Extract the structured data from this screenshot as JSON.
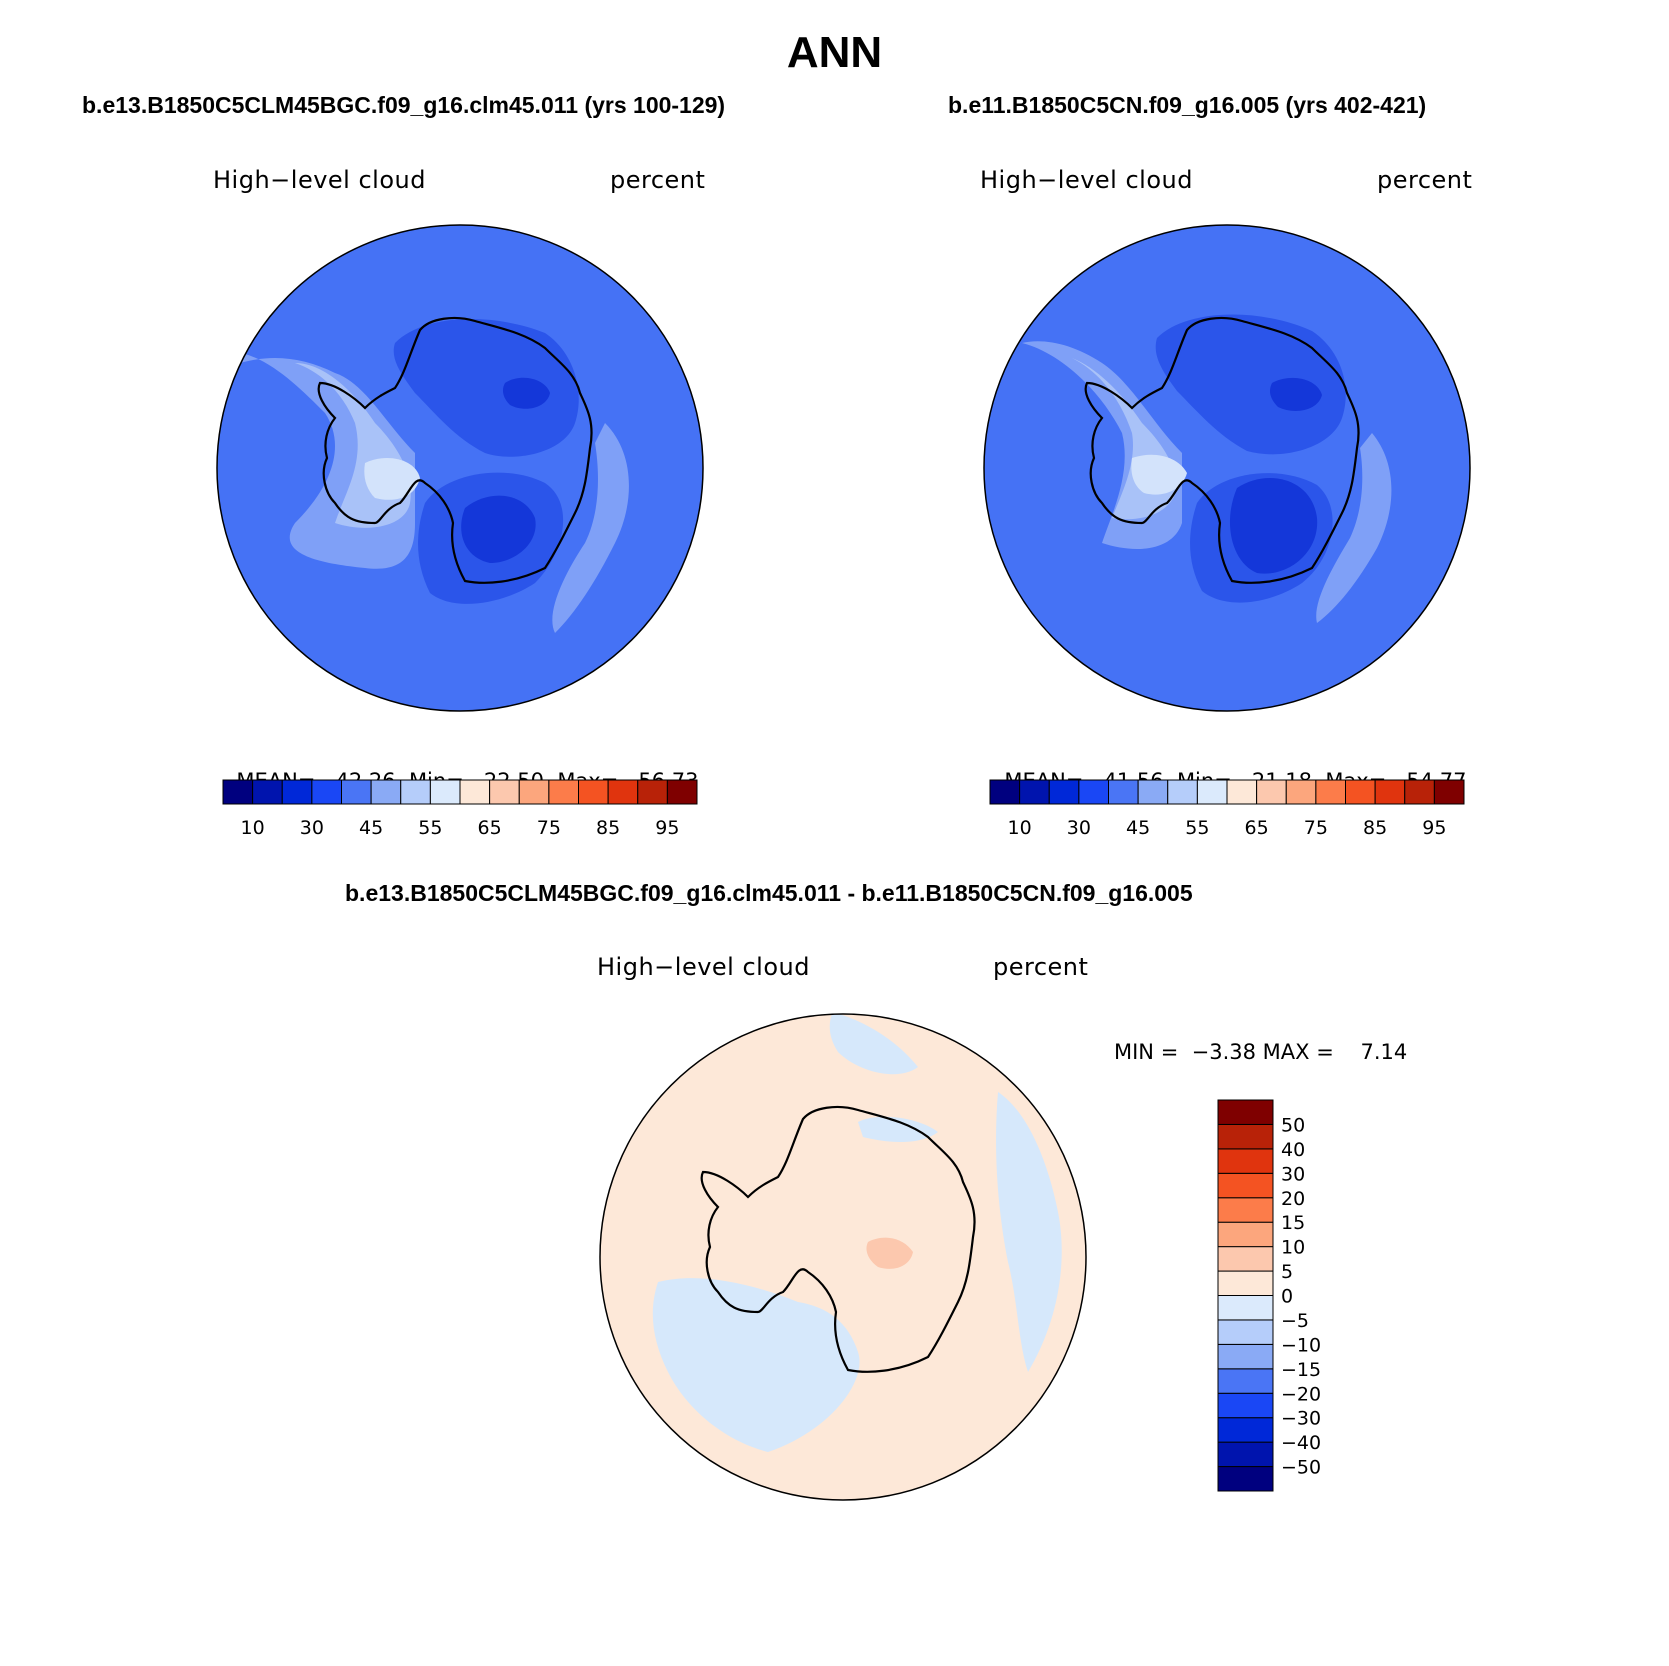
{
  "figure": {
    "title": "ANN",
    "variable_label": "High−level cloud",
    "units_label": "percent"
  },
  "panels": [
    {
      "case": "b.e13.B1850C5CLM45BGC.f09_g16.clm45.011 (yrs 100-129)",
      "variable": "High−level cloud",
      "units": "percent",
      "stats": {
        "mean_label": "MEAN=",
        "mean": "42.26",
        "min_label": "Min=",
        "min": "22.50",
        "max_label": "Max=",
        "max": "56.73"
      }
    },
    {
      "case": "b.e11.B1850C5CN.f09_g16.005 (yrs 402-421)",
      "variable": "High−level cloud",
      "units": "percent",
      "stats": {
        "mean_label": "MEAN=",
        "mean": "41.56",
        "min_label": "Min=",
        "min": "21.18",
        "max_label": "Max=",
        "max": "54.77"
      }
    },
    {
      "case": "b.e13.B1850C5CLM45BGC.f09_g16.clm45.011 - b.e11.B1850C5CN.f09_g16.005",
      "variable": "High−level cloud",
      "units": "percent",
      "stats_text": "MIN =  −3.38 MAX =    7.14"
    }
  ],
  "colorbar_main": {
    "colors": [
      "#00007f",
      "#0014ae",
      "#0028d8",
      "#1a47f5",
      "#4a75f5",
      "#8aaaf5",
      "#b5cdfa",
      "#dbeafc",
      "#fde8d8",
      "#fcc8ae",
      "#fca67d",
      "#fc7c4a",
      "#f45322",
      "#e0340e",
      "#b82208",
      "#7f0000"
    ],
    "labels": [
      "10",
      "30",
      "45",
      "55",
      "65",
      "75",
      "85",
      "95"
    ]
  },
  "colorbar_diff": {
    "colors": [
      "#00007f",
      "#0014ae",
      "#0028d8",
      "#1a47f5",
      "#4a75f5",
      "#8aaaf5",
      "#b5cdfa",
      "#dbeafc",
      "#fde8d8",
      "#fcc8ae",
      "#fca67d",
      "#fc7c4a",
      "#f45322",
      "#e0340e",
      "#b82208",
      "#7f0000"
    ],
    "labels": [
      "−50",
      "−40",
      "−30",
      "−20",
      "−15",
      "−10",
      "−5",
      "0",
      "5",
      "10",
      "15",
      "20",
      "30",
      "40",
      "50"
    ]
  },
  "map_colors": {
    "ocean_base": "#4572f5",
    "light_band": "#7fa0f7",
    "lighter_band": "#a9c2f8",
    "lightest": "#d3e3fb",
    "dark_interior": "#2b55ea",
    "darkest": "#1437d9",
    "diff_positive": "#fde8d8",
    "diff_positive2": "#fcc8ae",
    "diff_negative": "#d6e8fb"
  }
}
